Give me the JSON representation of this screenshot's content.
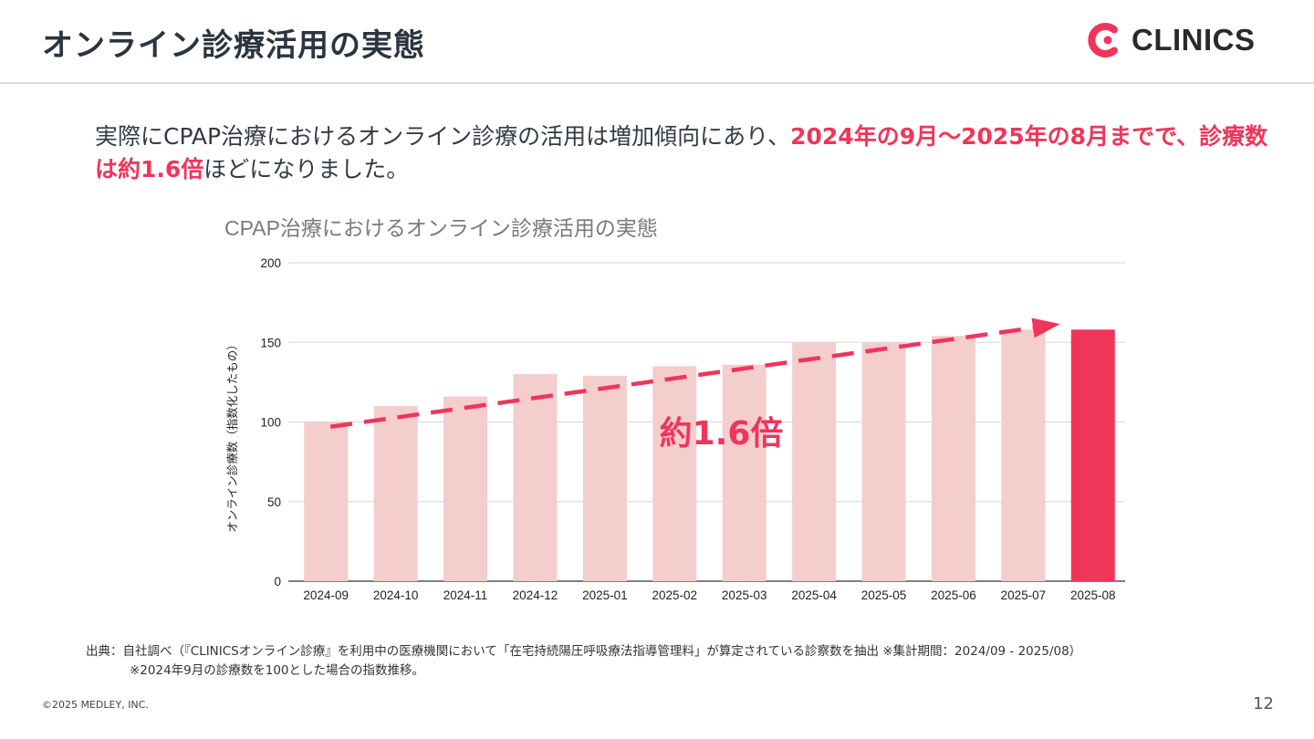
{
  "header": {
    "title": "オンライン診療活用の実態",
    "logo_text": "CLINICS",
    "brand_color": "#f0355a"
  },
  "lead": {
    "text1": "実際にCPAP治療におけるオンライン診療の活用は増加傾向にあり、",
    "highlight1": "2024年の9月～2025年の8月までで、診療数は約1.6倍",
    "text2": "ほどになりました。"
  },
  "chart_data": {
    "type": "bar",
    "title": "CPAP治療におけるオンライン診療活用の実態",
    "xlabel": "",
    "ylabel": "オンライン診療数（指数化したもの）",
    "ylim": [
      0,
      200
    ],
    "yticks": [
      0,
      50,
      100,
      150,
      200
    ],
    "grid": true,
    "categories": [
      "2024-09",
      "2024-10",
      "2024-11",
      "2024-12",
      "2025-01",
      "2025-02",
      "2025-03",
      "2025-04",
      "2025-05",
      "2025-06",
      "2025-07",
      "2025-08"
    ],
    "values": [
      100,
      110,
      116,
      130,
      129,
      135,
      136,
      150,
      150,
      154,
      158,
      158
    ],
    "bar_color": "#f4cdcd",
    "highlight_color": "#f0355a",
    "highlight_index": 11,
    "annotation": "約1.6倍",
    "trend_arrow": {
      "from_value": 97,
      "to_value": 158
    }
  },
  "footer": {
    "source": "出典：自社調べ（『CLINICSオンライン診療』を利用中の医療機関において「在宅持続陽圧呼吸療法指導管理料」が算定されている診察数を抽出 ※集計期間：2024/09 - 2025/08）",
    "note": "※2024年9月の診療数を100とした場合の指数推移。",
    "copyright": "©2025 MEDLEY, INC.",
    "page": "12"
  }
}
